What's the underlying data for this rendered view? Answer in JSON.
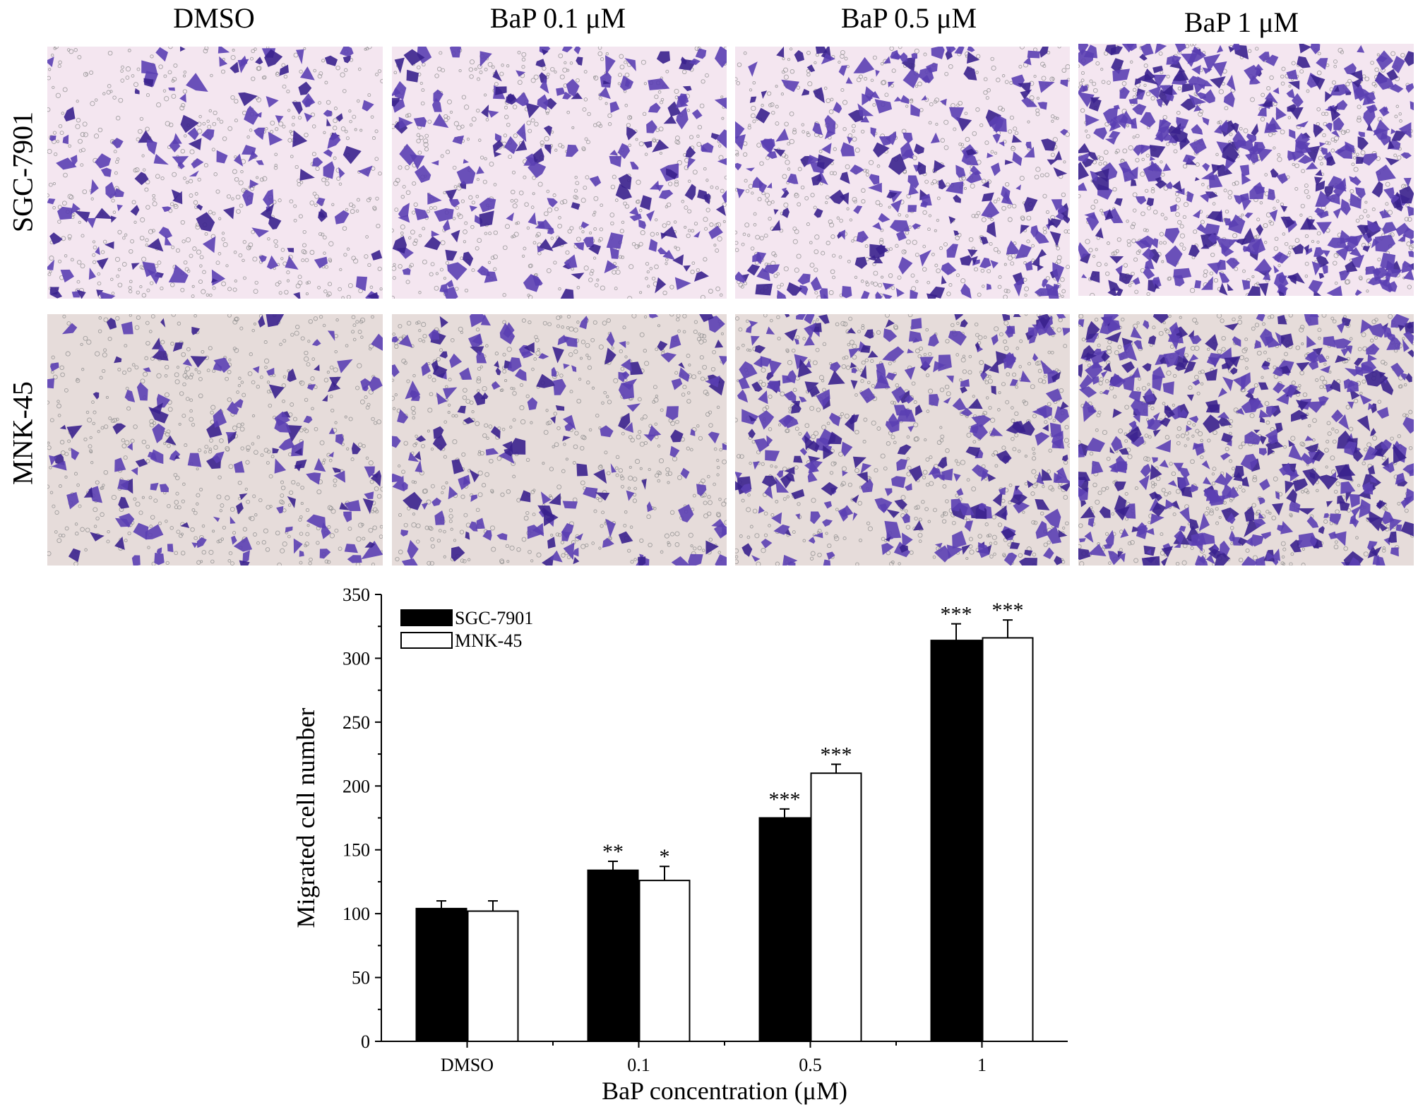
{
  "figure": {
    "column_titles": [
      "DMSO",
      "BaP 0.1 μM",
      "BaP 0.5 μM",
      "BaP 1 μM"
    ],
    "row_labels": [
      "SGC-7901",
      "MNK-45"
    ],
    "panel_colors": {
      "sgc_background": "#f4e6f0",
      "mnk_background": "#e6dcda",
      "stain": "#5b3fb3",
      "stain_dark": "#3a218d",
      "pore": "#8a8a8a"
    },
    "panels": [
      {
        "cell_line": "SGC-7901",
        "treatment": "DMSO",
        "relative_cell_density": 104,
        "seed": 11
      },
      {
        "cell_line": "SGC-7901",
        "treatment": "BaP 0.1 μM",
        "relative_cell_density": 134,
        "seed": 23
      },
      {
        "cell_line": "SGC-7901",
        "treatment": "BaP 0.5 μM",
        "relative_cell_density": 175,
        "seed": 37
      },
      {
        "cell_line": "SGC-7901",
        "treatment": "BaP 1 μM",
        "relative_cell_density": 314,
        "seed": 41
      },
      {
        "cell_line": "MNK-45",
        "treatment": "DMSO",
        "relative_cell_density": 102,
        "seed": 53
      },
      {
        "cell_line": "MNK-45",
        "treatment": "BaP 0.1 μM",
        "relative_cell_density": 126,
        "seed": 67
      },
      {
        "cell_line": "MNK-45",
        "treatment": "BaP 0.5 μM",
        "relative_cell_density": 210,
        "seed": 79
      },
      {
        "cell_line": "MNK-45",
        "treatment": "BaP 1 μM",
        "relative_cell_density": 316,
        "seed": 83
      }
    ]
  },
  "chart_data": {
    "type": "bar",
    "categories": [
      "DMSO",
      "0.1",
      "0.5",
      "1"
    ],
    "series": [
      {
        "name": "SGC-7901",
        "color": "#000000",
        "values": [
          104,
          134,
          175,
          314
        ],
        "errors": [
          6,
          7,
          7,
          13
        ],
        "significance": [
          "",
          "**",
          "***",
          "***"
        ]
      },
      {
        "name": "MNK-45",
        "color": "#ffffff",
        "values": [
          102,
          126,
          210,
          316
        ],
        "errors": [
          8,
          11,
          7,
          14
        ],
        "significance": [
          "",
          "*",
          "***",
          "***"
        ]
      }
    ],
    "xlabel": "BaP concentration (μM)",
    "ylabel": "Migrated cell number",
    "ylim": [
      0,
      350
    ],
    "yticks": [
      0,
      50,
      100,
      150,
      200,
      250,
      300,
      350
    ],
    "legend_position": "top-left",
    "grid": false
  }
}
